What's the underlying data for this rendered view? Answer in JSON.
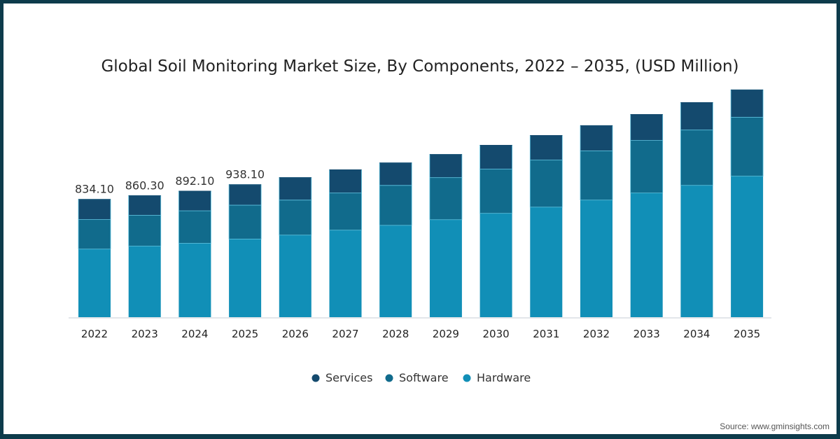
{
  "chart_data": {
    "type": "bar",
    "stacked": true,
    "title": "Global Soil Monitoring Market Size, By Components, 2022 – 2035, (USD Million)",
    "xlabel": "",
    "ylabel": "",
    "ylim": [
      0,
      1700
    ],
    "grid": false,
    "legend_position": "bottom",
    "categories": [
      "2022",
      "2023",
      "2024",
      "2025",
      "2026",
      "2027",
      "2028",
      "2029",
      "2030",
      "2031",
      "2032",
      "2033",
      "2034",
      "2035"
    ],
    "series": [
      {
        "name": "Hardware",
        "color": "#118fb7",
        "values": [
          482,
          503,
          523,
          553,
          581,
          616,
          650,
          690,
          735,
          779,
          829,
          879,
          933,
          998
        ]
      },
      {
        "name": "Software",
        "color": "#116b8c",
        "values": [
          209,
          218,
          230,
          240,
          248,
          263,
          283,
          298,
          313,
          333,
          348,
          372,
          392,
          417
        ]
      },
      {
        "name": "Services",
        "color": "#144a6e",
        "values": [
          143.1,
          139.3,
          139.1,
          145.1,
          159,
          164,
          159,
          164,
          169,
          174,
          179,
          184,
          194,
          194
        ]
      }
    ],
    "legend_order": [
      "Services",
      "Software",
      "Hardware"
    ],
    "data_labels": [
      "834.10",
      "860.30",
      "892.10",
      "938.10"
    ]
  },
  "source": "Source: www.gminsights.com"
}
